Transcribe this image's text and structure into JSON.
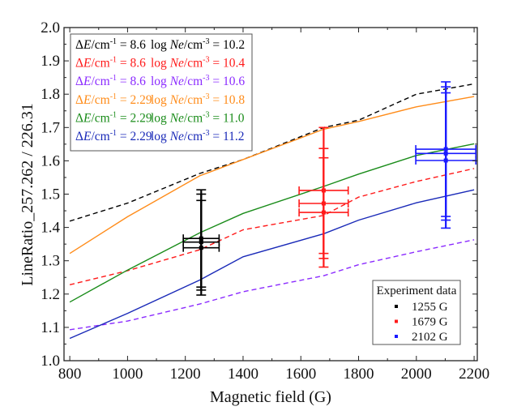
{
  "chart_data": {
    "type": "line",
    "title": "",
    "xlabel": "Magnetic field (G)",
    "ylabel": "LineRatio_257.262 / 226.31",
    "xlim": [
      780,
      2211
    ],
    "ylim": [
      1.0,
      2.0
    ],
    "xticks": [
      800,
      1000,
      1200,
      1400,
      1600,
      1800,
      2000,
      2200
    ],
    "xtick_labels": [
      "800",
      "1000",
      "1200",
      "1400",
      "1600",
      "1800",
      "2000",
      "2200"
    ],
    "yticks": [
      1.0,
      1.1,
      1.2,
      1.3,
      1.4,
      1.5,
      1.6,
      1.7,
      1.8,
      1.9,
      2.0
    ],
    "ytick_labels": [
      "1.0",
      "1.1",
      "1.2",
      "1.3",
      "1.4",
      "1.5",
      "1.6",
      "1.7",
      "1.8",
      "1.9",
      "2.0"
    ],
    "grid": false,
    "x": [
      800,
      1000,
      1250,
      1400,
      1679,
      1800,
      2000,
      2200
    ],
    "series": [
      {
        "name": "ΔE/cm⁻¹ = 8.6 log Ne/cm⁻³ = 10.2",
        "dE": "8.6",
        "logNe": "10.2",
        "color": "#000000",
        "dashed": true,
        "values": [
          1.419,
          1.473,
          1.562,
          1.604,
          1.7,
          1.722,
          1.8,
          1.831
        ]
      },
      {
        "name": "ΔE/cm⁻¹ = 8.6 log Ne/cm⁻³ = 10.4",
        "dE": "8.6",
        "logNe": "10.4",
        "color": "#ff1a1a",
        "dashed": true,
        "values": [
          1.228,
          1.27,
          1.333,
          1.393,
          1.436,
          1.491,
          1.538,
          1.577
        ]
      },
      {
        "name": "ΔE/cm⁻¹ = 8.6 log Ne/cm⁻³ = 10.6",
        "dE": "8.6",
        "logNe": "10.6",
        "color": "#8b2bff",
        "dashed": true,
        "values": [
          1.093,
          1.119,
          1.17,
          1.207,
          1.255,
          1.288,
          1.327,
          1.363
        ]
      },
      {
        "name": "ΔE/cm⁻¹ = 2.29 log Ne/cm⁻³ = 10.8",
        "dE": "2.29",
        "logNe": "10.8",
        "color": "#ff8c1a",
        "dashed": false,
        "values": [
          1.322,
          1.432,
          1.555,
          1.604,
          1.695,
          1.718,
          1.762,
          1.793
        ]
      },
      {
        "name": "ΔE/cm⁻¹ = 2.29 log Ne/cm⁻³ = 11.0",
        "dE": "2.29",
        "logNe": "11.0",
        "color": "#1a8c1a",
        "dashed": false,
        "values": [
          1.176,
          1.272,
          1.384,
          1.442,
          1.523,
          1.56,
          1.616,
          1.651
        ]
      },
      {
        "name": "ΔE/cm⁻¹ = 2.29 log Ne/cm⁻³ = 11.2",
        "dE": "2.29",
        "logNe": "11.2",
        "color": "#1a2ab8",
        "dashed": false,
        "values": [
          1.067,
          1.142,
          1.242,
          1.312,
          1.381,
          1.422,
          1.474,
          1.513
        ]
      }
    ],
    "experiment": {
      "title": "Experiment data",
      "groups": [
        {
          "label": "1255 G",
          "color": "#000000",
          "points": [
            {
              "x": 1255,
              "y": 1.367,
              "xerr": 62,
              "yerr": 0.146
            },
            {
              "x": 1255,
              "y": 1.356,
              "xerr": 62,
              "yerr": 0.144
            },
            {
              "x": 1255,
              "y": 1.339,
              "xerr": 62,
              "yerr": 0.142
            }
          ]
        },
        {
          "label": "1679 G",
          "color": "#ff1a1a",
          "points": [
            {
              "x": 1679,
              "y": 1.511,
              "xerr": 85,
              "yerr": 0.189
            },
            {
              "x": 1679,
              "y": 1.472,
              "xerr": 85,
              "yerr": 0.165
            },
            {
              "x": 1679,
              "y": 1.445,
              "xerr": 85,
              "yerr": 0.164
            }
          ]
        },
        {
          "label": "2102 G",
          "color": "#1a1aff",
          "points": [
            {
              "x": 2102,
              "y": 1.635,
              "xerr": 104,
              "yerr": 0.202
            },
            {
              "x": 2102,
              "y": 1.622,
              "xerr": 104,
              "yerr": 0.2
            },
            {
              "x": 2102,
              "y": 1.601,
              "xerr": 104,
              "yerr": 0.203
            }
          ]
        }
      ]
    },
    "legend_position": "top-left",
    "experiment_legend_position": "bottom-right"
  },
  "legend": {
    "entries": [
      {
        "de_prefix": "ΔE/cm",
        "de_exp": "-1",
        "de_value": "= 8.6",
        "ne_prefix": "log ",
        "ne_italic": "Ne",
        "ne_unit": "/cm",
        "ne_exp": "-3",
        "ne_value": "= 10.2",
        "color": "#000000"
      },
      {
        "de_prefix": "ΔE/cm",
        "de_exp": "-1",
        "de_value": "= 8.6",
        "ne_prefix": "log ",
        "ne_italic": "Ne",
        "ne_unit": "/cm",
        "ne_exp": "-3",
        "ne_value": "= 10.4",
        "color": "#ff1a1a"
      },
      {
        "de_prefix": "ΔE/cm",
        "de_exp": "-1",
        "de_value": "= 8.6",
        "ne_prefix": "log ",
        "ne_italic": "Ne",
        "ne_unit": "/cm",
        "ne_exp": "-3",
        "ne_value": "= 10.6",
        "color": "#8b2bff"
      },
      {
        "de_prefix": "ΔE/cm",
        "de_exp": "-1",
        "de_value": "= 2.29",
        "ne_prefix": "log ",
        "ne_italic": "Ne",
        "ne_unit": "/cm",
        "ne_exp": "-3",
        "ne_value": "= 10.8",
        "color": "#ff8c1a"
      },
      {
        "de_prefix": "ΔE/cm",
        "de_exp": "-1",
        "de_value": "= 2.29",
        "ne_prefix": "log ",
        "ne_italic": "Ne",
        "ne_unit": "/cm",
        "ne_exp": "-3",
        "ne_value": "= 11.0",
        "color": "#1a8c1a"
      },
      {
        "de_prefix": "ΔE/cm",
        "de_exp": "-1",
        "de_value": "= 2.29",
        "ne_prefix": "log ",
        "ne_italic": "Ne",
        "ne_unit": "/cm",
        "ne_exp": "-3",
        "ne_value": "= 11.2",
        "color": "#1a2ab8"
      }
    ]
  }
}
